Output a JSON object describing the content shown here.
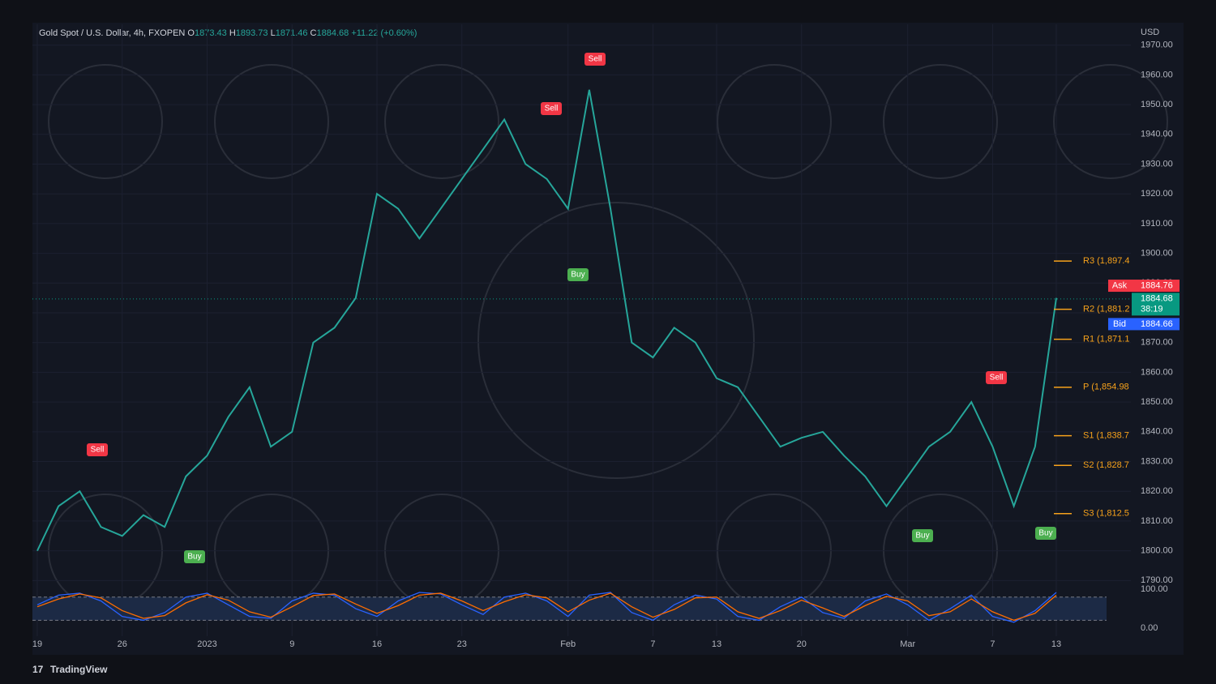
{
  "header": {
    "symbol": "Gold Spot / U.S. Dollar, 4h, FXOPEN",
    "ohlc": [
      [
        "O",
        "1873.43"
      ],
      [
        "H",
        "1893.73"
      ],
      [
        "L",
        "1871.46"
      ],
      [
        "C",
        "1884.68"
      ]
    ],
    "change": "+11.22 (+0.60%)"
  },
  "currency": "USD",
  "brand": "TradingView",
  "signals": [
    {
      "text": "Sell",
      "color": "#f23645"
    },
    {
      "text": "Buy",
      "color": "#4caf50"
    },
    {
      "text": "Sell",
      "color": "#f23645"
    },
    {
      "text": "Sell",
      "color": "#f23645"
    },
    {
      "text": "Buy",
      "color": "#4caf50"
    },
    {
      "text": "Buy",
      "color": "#4caf50"
    },
    {
      "text": "Sell",
      "color": "#f23645"
    },
    {
      "text": "Buy",
      "color": "#4caf50"
    }
  ],
  "chart_data": [
    {
      "type": "line",
      "color": "#26a69a",
      "categories": [
        "19",
        null,
        null,
        null,
        "26",
        null,
        null,
        null,
        "2023",
        null,
        null,
        null,
        "9",
        null,
        null,
        null,
        "16",
        null,
        null,
        null,
        "23",
        null,
        null,
        null,
        null,
        "Feb",
        null,
        null,
        null,
        "7",
        null,
        null,
        "13",
        null,
        null,
        null,
        "20",
        null,
        null,
        null,
        null,
        "Mar",
        null,
        null,
        null,
        "7",
        null,
        null,
        "13"
      ],
      "values": [
        1800,
        1815,
        1820,
        1808,
        1805,
        1812,
        1808,
        1825,
        1832,
        1845,
        1855,
        1835,
        1840,
        1870,
        1875,
        1885,
        1920,
        1915,
        1905,
        1915,
        1925,
        1935,
        1945,
        1930,
        1925,
        1915,
        1955,
        1915,
        1870,
        1865,
        1875,
        1870,
        1858,
        1855,
        1845,
        1835,
        1838,
        1840,
        1832,
        1825,
        1815,
        1825,
        1835,
        1840,
        1850,
        1835,
        1815,
        1835,
        1885
      ],
      "ylim": [
        1789,
        1977
      ],
      "yticks": [
        {
          "value": 1790,
          "label": "1790.00"
        },
        {
          "value": 1800,
          "label": "1800.00"
        },
        {
          "value": 1810,
          "label": "1810.00"
        },
        {
          "value": 1820,
          "label": "1820.00"
        },
        {
          "value": 1830,
          "label": "1830.00"
        },
        {
          "value": 1840,
          "label": "1840.00"
        },
        {
          "value": 1850,
          "label": "1850.00"
        },
        {
          "value": 1860,
          "label": "1860.00"
        },
        {
          "value": 1870,
          "label": "1870.00"
        },
        {
          "value": 1880,
          "label": "1880.00"
        },
        {
          "value": 1890,
          "label": "1890.00"
        },
        {
          "value": 1900,
          "label": "1900.00"
        },
        {
          "value": 1910,
          "label": "1910.00"
        },
        {
          "value": 1920,
          "label": "1920.00"
        },
        {
          "value": 1930,
          "label": "1930.00"
        },
        {
          "value": 1940,
          "label": "1940.00"
        },
        {
          "value": 1950,
          "label": "1950.00"
        },
        {
          "value": 1960,
          "label": "1960.00"
        },
        {
          "value": 1970,
          "label": "1970.00"
        }
      ],
      "pivot_color": "#f7a21b",
      "pivots": [
        {
          "value": 1897.4,
          "label": "R3 (1,897.4"
        },
        {
          "value": 1881.2,
          "label": "R2 (1,881.2"
        },
        {
          "value": 1871.1,
          "label": "R1 (1,871.1"
        },
        {
          "value": 1854.98,
          "label": "P (1,854.98"
        },
        {
          "value": 1838.7,
          "label": "S1 (1,838.7"
        },
        {
          "value": 1828.7,
          "label": "S2 (1,828.7"
        },
        {
          "value": 1812.5,
          "label": "S3 (1,812.5"
        }
      ],
      "price_tags": [
        {
          "label": "Ask",
          "value": 1884.76,
          "color": "#f23645"
        },
        {
          "value": 1884.68,
          "countdown": "38:19",
          "color": "#089981"
        },
        {
          "label": "Bid",
          "value": 1884.66,
          "color": "#2962ff"
        }
      ]
    },
    {
      "type": "line",
      "ylim": [
        -21,
        115
      ],
      "yticks": [
        {
          "value": 100,
          "label": "100.00"
        },
        {
          "value": 0,
          "label": "0.00"
        }
      ],
      "levels": [
        20,
        80
      ],
      "series": [
        {
          "color": "#2962ff",
          "values": [
            60,
            85,
            90,
            70,
            30,
            20,
            40,
            80,
            90,
            60,
            30,
            25,
            70,
            90,
            85,
            50,
            30,
            70,
            92,
            88,
            60,
            35,
            80,
            90,
            70,
            30,
            85,
            92,
            40,
            20,
            60,
            85,
            75,
            30,
            20,
            55,
            80,
            40,
            25,
            70,
            88,
            60,
            20,
            50,
            85,
            30,
            15,
            45,
            92
          ]
        },
        {
          "color": "#ff6d00",
          "values": [
            55,
            75,
            88,
            78,
            45,
            25,
            32,
            65,
            86,
            72,
            42,
            28,
            55,
            84,
            88,
            62,
            38,
            58,
            85,
            90,
            70,
            45,
            68,
            86,
            78,
            42,
            72,
            90,
            55,
            28,
            48,
            78,
            80,
            42,
            25,
            45,
            72,
            52,
            30,
            58,
            82,
            70,
            32,
            42,
            75,
            42,
            20,
            38,
            85
          ]
        }
      ]
    }
  ]
}
